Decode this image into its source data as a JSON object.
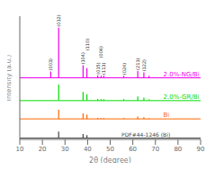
{
  "chart_data": {
    "type": "stick",
    "xlabel": "2θ (degree)",
    "ylabel": "Intensity (a.u.)",
    "xlim": [
      10,
      90
    ],
    "xticks": [
      10,
      20,
      30,
      40,
      50,
      60,
      70,
      80,
      90
    ],
    "ylim": [
      0,
      5.4
    ],
    "tick_labels": "x",
    "series": [
      {
        "name": "2.0%-NG/Bi",
        "color": "#ee00ee",
        "baseline": 2.7,
        "label_x": 73.5,
        "x": [
          23.7,
          27.2,
          38.0,
          39.7,
          44.5,
          46.0,
          47.2,
          56.0,
          62.2,
          64.9,
          67.2
        ],
        "values": [
          0.28,
          2.2,
          0.55,
          0.42,
          0.11,
          0.1,
          0.1,
          0.09,
          0.3,
          0.24,
          0.09
        ],
        "peak_labels": [
          {
            "x": 23.7,
            "label": "(003)"
          },
          {
            "x": 27.2,
            "label": "(012)"
          },
          {
            "x": 38.0,
            "label": "(104)"
          },
          {
            "x": 39.7,
            "label": "(110)"
          },
          {
            "x": 44.5,
            "label": "(015)"
          },
          {
            "x": 46.0,
            "label": "(006)"
          },
          {
            "x": 47.2,
            "label": "(113)"
          },
          {
            "x": 56.0,
            "label": "(024)"
          },
          {
            "x": 62.2,
            "label": "(211)"
          },
          {
            "x": 64.9,
            "label": "(122)"
          }
        ]
      },
      {
        "name": "2.0%-GR/Bi",
        "color": "#00dd00",
        "baseline": 1.7,
        "label_x": 73.5,
        "x": [
          27.2,
          38.0,
          39.7,
          44.5,
          46.0,
          47.2,
          56.0,
          62.2,
          64.9,
          67.2
        ],
        "values": [
          0.7,
          0.38,
          0.28,
          0.07,
          0.06,
          0.06,
          0.06,
          0.18,
          0.13,
          0.05
        ]
      },
      {
        "name": "Bi",
        "color": "#ff6600",
        "baseline": 0.9,
        "label_x": 73.5,
        "x": [
          27.2,
          38.0,
          39.7,
          44.5,
          46.0,
          47.2,
          56.0,
          62.2,
          64.9,
          67.2
        ],
        "values": [
          0.4,
          0.24,
          0.18,
          0.05,
          0.04,
          0.04,
          0.04,
          0.11,
          0.08,
          0.03
        ]
      },
      {
        "name": "PDF#44-1246 (Bi)",
        "color": "#444444",
        "baseline": 0.06,
        "label_x": 55.0,
        "x": [
          27.2,
          38.0,
          39.7
        ],
        "values": [
          0.28,
          0.18,
          0.13
        ]
      }
    ]
  }
}
